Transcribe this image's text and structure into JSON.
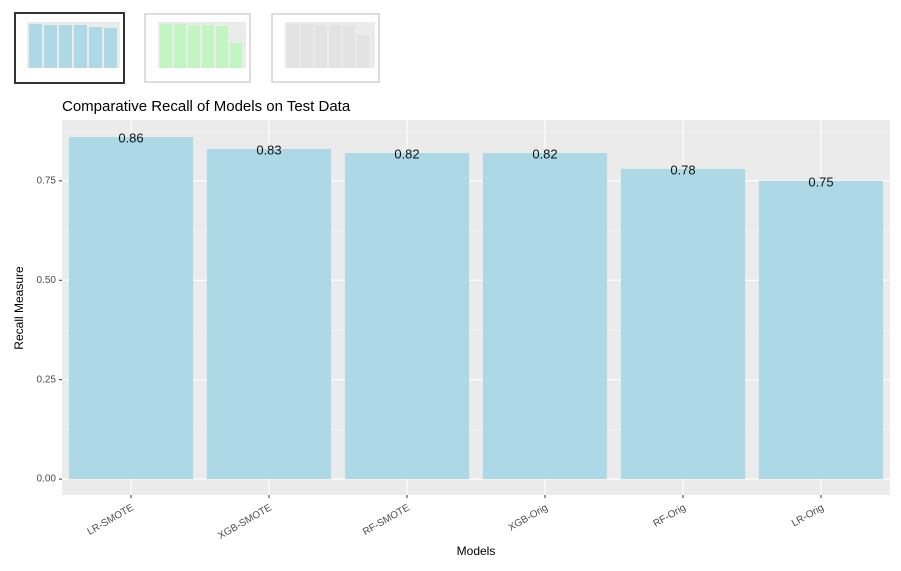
{
  "chart_data": {
    "type": "bar",
    "title": "Comparative Recall of Models on Test Data",
    "x_label": "Models",
    "y_label": "Recall Measure",
    "categories": [
      "LR-SMOTE",
      "XGB-SMOTE",
      "RF-SMOTE",
      "XGB-Orig",
      "RF-Orig",
      "LR-Orig"
    ],
    "values": [
      0.86,
      0.83,
      0.82,
      0.82,
      0.78,
      0.75
    ],
    "color": "#add8e6",
    "ylim": [
      -0.04,
      0.903
    ],
    "yticks": [
      {
        "value": 0,
        "label": "0.00"
      },
      {
        "value": 0.25,
        "label": "0.25"
      },
      {
        "value": 0.5,
        "label": "0.50"
      },
      {
        "value": 0.75,
        "label": "0.75"
      }
    ],
    "grid": true
  }
}
